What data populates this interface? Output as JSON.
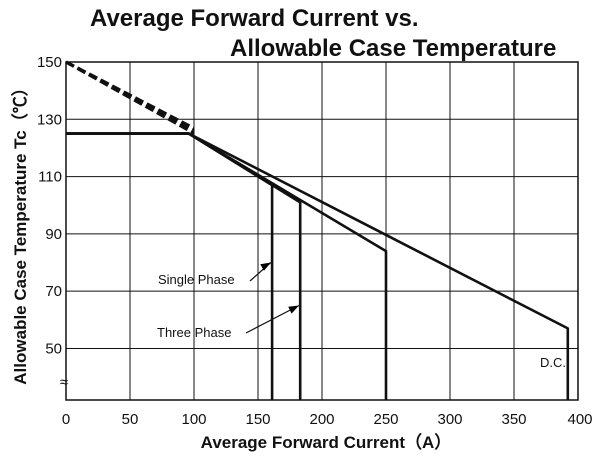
{
  "chart_data": {
    "type": "line",
    "title_line1": "Average Forward Current vs.",
    "title_line2": "Allowable Case Temperature",
    "xlabel": "Average Forward Current（A）",
    "ylabel": "Allowable Case Temperature Tc（℃）",
    "xlim": [
      0,
      400
    ],
    "ylim": [
      32,
      150
    ],
    "grid": true,
    "x_ticks": [
      "0",
      "50",
      "100",
      "150",
      "200",
      "250",
      "300",
      "350",
      "400"
    ],
    "y_ticks": [
      "150",
      "130",
      "110",
      "90",
      "70",
      "50"
    ],
    "axis_break_symbol": "≈",
    "series": [
      {
        "name": "Single Phase",
        "points": [
          [
            0,
            125
          ],
          [
            96,
            125
          ],
          [
            161,
            107
          ],
          [
            161,
            32
          ]
        ]
      },
      {
        "name": "Three Phase",
        "points": [
          [
            0,
            125
          ],
          [
            96,
            125
          ],
          [
            183,
            101
          ],
          [
            183,
            32
          ]
        ]
      },
      {
        "name": "",
        "points": [
          [
            0,
            125
          ],
          [
            96,
            125
          ],
          [
            250,
            84
          ],
          [
            250,
            32
          ]
        ]
      },
      {
        "name": "D.C.",
        "points": [
          [
            0,
            125
          ],
          [
            96,
            125
          ],
          [
            392,
            57
          ],
          [
            392,
            32
          ]
        ]
      }
    ],
    "extrapolation": {
      "from": [
        0,
        150
      ],
      "to": [
        100,
        126
      ],
      "style": "dashed"
    },
    "annotations": [
      {
        "text": "Single Phase",
        "target_series": "Single Phase",
        "arrow_to": [
          160,
          80
        ]
      },
      {
        "text": "Three Phase",
        "target_series": "Three Phase",
        "arrow_to": [
          182,
          65
        ]
      },
      {
        "text": "D.C."
      }
    ]
  }
}
